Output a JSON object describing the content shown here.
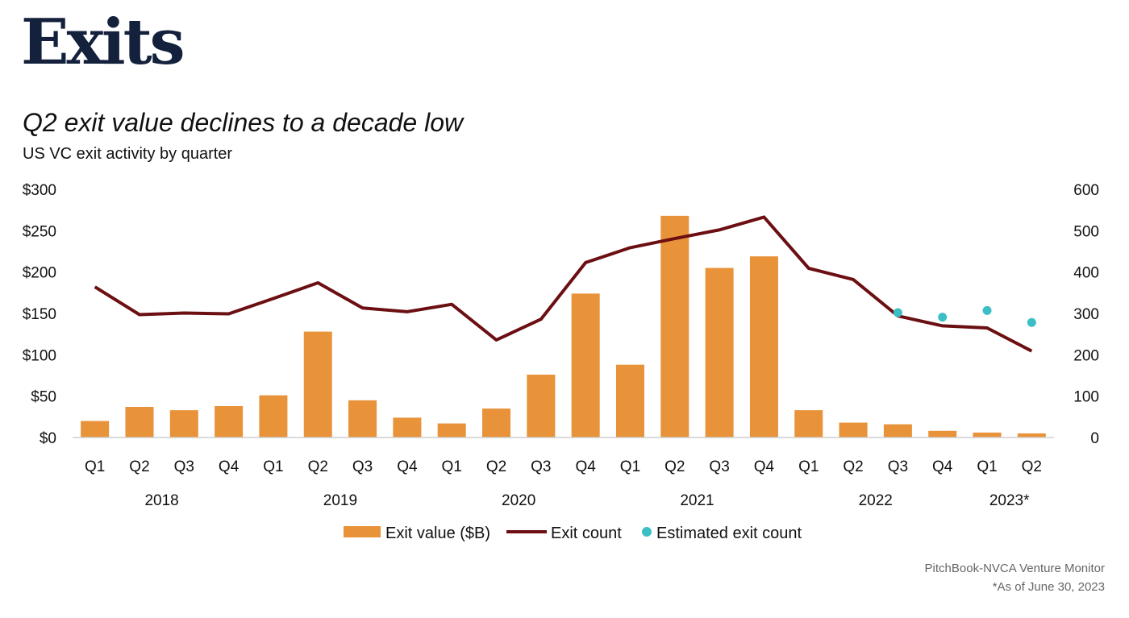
{
  "header": {
    "section_title": "Exits"
  },
  "chart_data": {
    "type": "bar",
    "title": "Q2 exit value declines to a decade low",
    "subtitle": "US VC exit activity by quarter",
    "categories": [
      "Q1",
      "Q2",
      "Q3",
      "Q4",
      "Q1",
      "Q2",
      "Q3",
      "Q4",
      "Q1",
      "Q2",
      "Q3",
      "Q4",
      "Q1",
      "Q2",
      "Q3",
      "Q4",
      "Q1",
      "Q2",
      "Q3",
      "Q4",
      "Q1",
      "Q2"
    ],
    "year_groups": [
      {
        "label": "2018",
        "start": 0,
        "end": 3
      },
      {
        "label": "2019",
        "start": 4,
        "end": 7
      },
      {
        "label": "2020",
        "start": 8,
        "end": 11
      },
      {
        "label": "2021",
        "start": 12,
        "end": 15
      },
      {
        "label": "2022",
        "start": 16,
        "end": 19
      },
      {
        "label": "2023*",
        "start": 20,
        "end": 21
      }
    ],
    "series": [
      {
        "name": "Exit value ($B)",
        "kind": "bar",
        "axis": "left",
        "color": "#E8923A",
        "values": [
          20,
          37,
          33,
          38,
          51,
          128,
          45,
          24,
          17,
          35,
          76,
          174,
          88,
          268,
          205,
          219,
          33,
          18,
          16,
          8,
          6,
          5
        ]
      },
      {
        "name": "Exit count",
        "kind": "line",
        "axis": "right",
        "color": "#6B0F12",
        "values": [
          364,
          297,
          301,
          299,
          336,
          374,
          313,
          304,
          322,
          236,
          286,
          423,
          459,
          481,
          502,
          533,
          409,
          382,
          294,
          270,
          265,
          209
        ]
      },
      {
        "name": "Estimated exit count",
        "kind": "scatter",
        "axis": "right",
        "color": "#3BBFC4",
        "points": [
          {
            "index": 18,
            "value": 302
          },
          {
            "index": 19,
            "value": 291
          },
          {
            "index": 20,
            "value": 307
          },
          {
            "index": 21,
            "value": 278
          }
        ]
      }
    ],
    "y_left": {
      "ylim": [
        0,
        300
      ],
      "ticks": [
        "$0",
        "$50",
        "$100",
        "$150",
        "$200",
        "$250",
        "$300"
      ]
    },
    "y_right": {
      "ylim": [
        0,
        600
      ],
      "ticks": [
        "0",
        "100",
        "200",
        "300",
        "400",
        "500",
        "600"
      ]
    },
    "legend_placement": "bottom-center",
    "grid": false
  },
  "footer": {
    "source": "PitchBook-NVCA Venture Monitor",
    "note": "*As of June 30, 2023"
  }
}
